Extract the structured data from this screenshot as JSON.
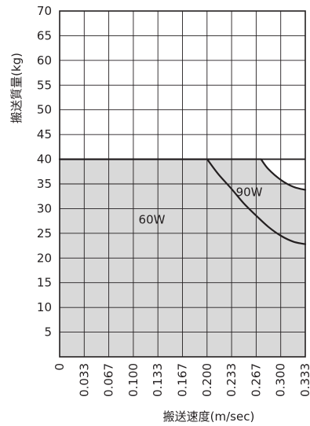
{
  "chart_data": {
    "type": "area",
    "xlabel": "搬送速度(m/sec)",
    "ylabel": "搬送質量(kg)",
    "xlim": [
      0,
      0.333
    ],
    "ylim": [
      0,
      70
    ],
    "x_ticks": [
      "0",
      "0.033",
      "0.067",
      "0.100",
      "0.133",
      "0.167",
      "0.200",
      "0.233",
      "0.267",
      "0.300",
      "0.333"
    ],
    "y_ticks": [
      "5",
      "10",
      "15",
      "20",
      "25",
      "30",
      "35",
      "40",
      "45",
      "50",
      "55",
      "60",
      "65",
      "70"
    ],
    "grid": true,
    "shaded_region": "below the outer boundary",
    "series": [
      {
        "name": "60W",
        "x": [
          0,
          0.2,
          0.215,
          0.233,
          0.25,
          0.267,
          0.283,
          0.3,
          0.317,
          0.333
        ],
        "y": [
          40,
          40,
          37,
          34,
          31,
          28.5,
          26.3,
          24.5,
          23.3,
          22.8
        ]
      },
      {
        "name": "90W",
        "x": [
          0,
          0.273,
          0.283,
          0.3,
          0.317,
          0.333
        ],
        "y": [
          40,
          40,
          38,
          35.8,
          34.4,
          33.8
        ]
      }
    ],
    "annotations": [
      {
        "text": "60W",
        "x": 0.125,
        "y": 27.0
      },
      {
        "text": "90W",
        "x": 0.257,
        "y": 32.5
      }
    ]
  },
  "colors": {
    "fill": "#d9d9d9",
    "grid": "#231f20",
    "curve": "#231f20"
  }
}
